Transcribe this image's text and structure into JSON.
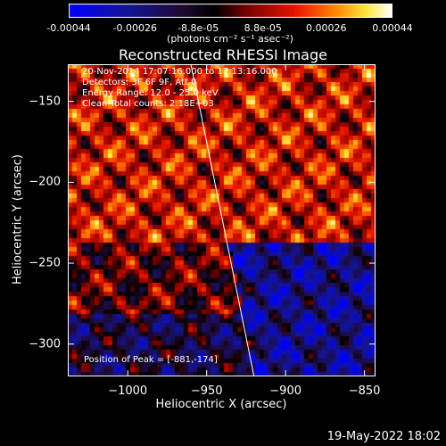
{
  "colorbar": {
    "ticks": [
      "-0.00044",
      "-0.00026",
      "-8.8e-05",
      "8.8e-05",
      "0.00026",
      "0.00044"
    ],
    "tick_values": [
      -0.00044,
      -0.00026,
      -8.8e-05,
      8.8e-05,
      0.00026,
      0.00044
    ],
    "range": [
      -0.00044,
      0.00044
    ],
    "units": "(photons cm⁻² s⁻¹ asec⁻²)"
  },
  "chart_data": {
    "type": "heatmap",
    "title": "Reconstructed RHESSI Image",
    "xlabel": "Heliocentric X (arcsec)",
    "ylabel": "Heliocentric Y (arcsec)",
    "xlim": [
      -1038,
      -843
    ],
    "ylim": [
      -320,
      -127
    ],
    "xticks": [
      -1000,
      -950,
      -900,
      -850
    ],
    "xtick_labels": [
      "−1000",
      "−950",
      "−900",
      "−850"
    ],
    "yticks": [
      -150,
      -200,
      -250,
      -300
    ],
    "ytick_labels": [
      "−150",
      "−200",
      "−250",
      "−300"
    ],
    "colormap": "rainbow-like: blue-black-red-yellow-white",
    "limb_line": [
      {
        "x": -960,
        "y": -127
      },
      {
        "x": -920,
        "y": -320
      }
    ],
    "peak": {
      "x": -881,
      "y": -174
    }
  },
  "info": {
    "line1": "20-Nov-2014 17:07:16.000 to 17:13:16.000",
    "line2": "Detectors: 3F 6F 9F, Att 0",
    "line3": "Energy Range: 12.0 - 25.0 keV",
    "line4": "Clean     Total counts: 2.18E+03"
  },
  "peak_text": "Position of Peak = [-881,-174]",
  "footer_date": "19-May-2022 18:02",
  "colors": {
    "background": "#000000",
    "text": "#ffffff",
    "limb_line": "#ffffff"
  }
}
